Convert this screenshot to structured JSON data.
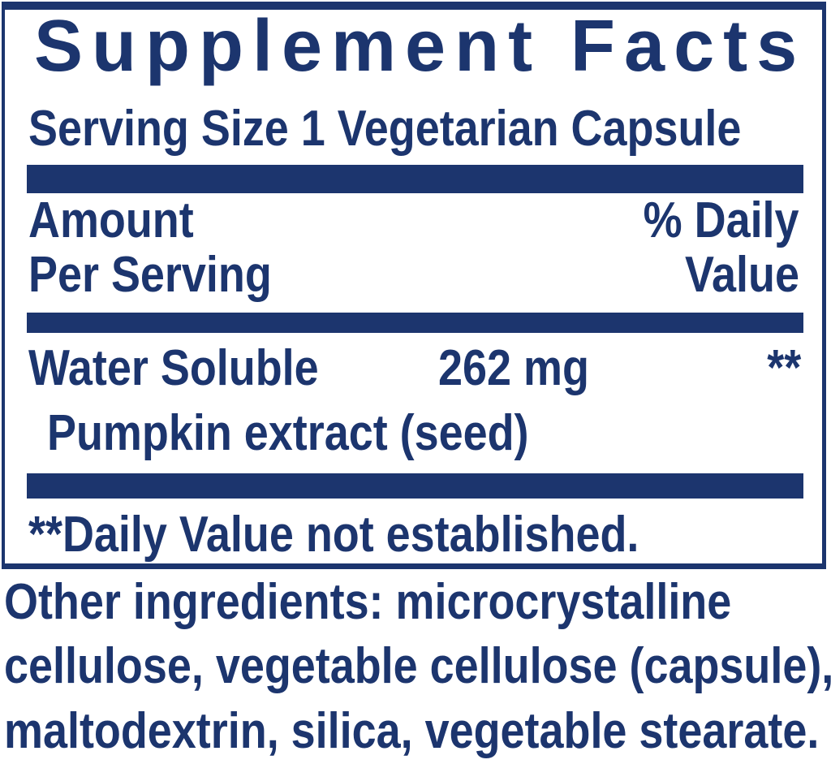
{
  "panel": {
    "title": "Supplement Facts",
    "serving_size": "Serving Size 1 Vegetarian Capsule",
    "columns": {
      "amount_label_line1": "Amount",
      "amount_label_line2": "Per Serving",
      "daily_value_label_line1": "% Daily",
      "daily_value_label_line2": "Value"
    },
    "ingredient_row": {
      "name": "Water Soluble",
      "amount": "262 mg",
      "daily_value": "**",
      "detail": "Pumpkin extract (seed)"
    },
    "footnote": "**Daily Value not established."
  },
  "other_ingredients": {
    "line1": "Other ingredients: microcrystalline",
    "line2": "cellulose, vegetable cellulose (capsule),",
    "line3": "maltodextrin, silica, vegetable stearate."
  },
  "colors": {
    "text_navy": "#1c356e",
    "background": "#ffffff"
  }
}
